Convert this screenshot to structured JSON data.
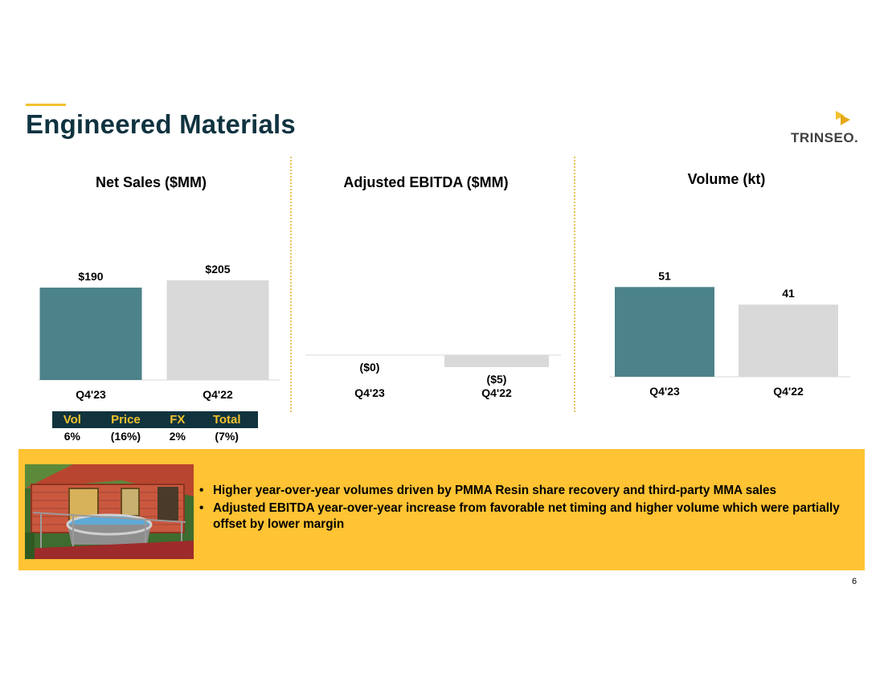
{
  "title": "Engineered Materials",
  "logo": {
    "text": "TRINSEO.",
    "accent_color": "#F2C12E"
  },
  "colors": {
    "current": "#4C8289",
    "prior": "#D9D9D9",
    "title": "#0F3340",
    "banner": "#FFC333"
  },
  "chart_data": [
    {
      "type": "bar",
      "title": "Net Sales ($MM)",
      "categories": [
        "Q4'23",
        "Q4'22"
      ],
      "values": [
        190,
        205
      ],
      "labels": [
        "$190",
        "$205"
      ],
      "colors": [
        "#4C8289",
        "#D9D9D9"
      ],
      "ylim": [
        0,
        260
      ],
      "grid": false
    },
    {
      "type": "bar",
      "title": "Adjusted EBITDA ($MM)",
      "categories": [
        "Q4'23",
        "Q4'22"
      ],
      "values": [
        0,
        -5
      ],
      "labels": [
        "($0)",
        "($5)"
      ],
      "colors": [
        "#4C8289",
        "#D9D9D9"
      ],
      "ylim": [
        -6,
        30
      ],
      "grid": false
    },
    {
      "type": "bar",
      "title": "Volume (kt)",
      "categories": [
        "Q4'23",
        "Q4'22"
      ],
      "values": [
        51,
        41
      ],
      "labels": [
        "51",
        "41"
      ],
      "colors": [
        "#4C8289",
        "#D9D9D9"
      ],
      "ylim": [
        0,
        70
      ],
      "grid": false
    }
  ],
  "bridge": {
    "headers": [
      "Vol",
      "Price",
      "FX",
      "Total"
    ],
    "values": [
      "6%",
      "(16%)",
      "2%",
      "(7%)"
    ]
  },
  "highlights": [
    "Higher year-over-year volumes driven by PMMA Resin share recovery and third-party MMA sales",
    "Adjusted EBITDA year-over-year increase from favorable net timing and higher volume which were partially offset by lower margin"
  ],
  "page_number": "6"
}
